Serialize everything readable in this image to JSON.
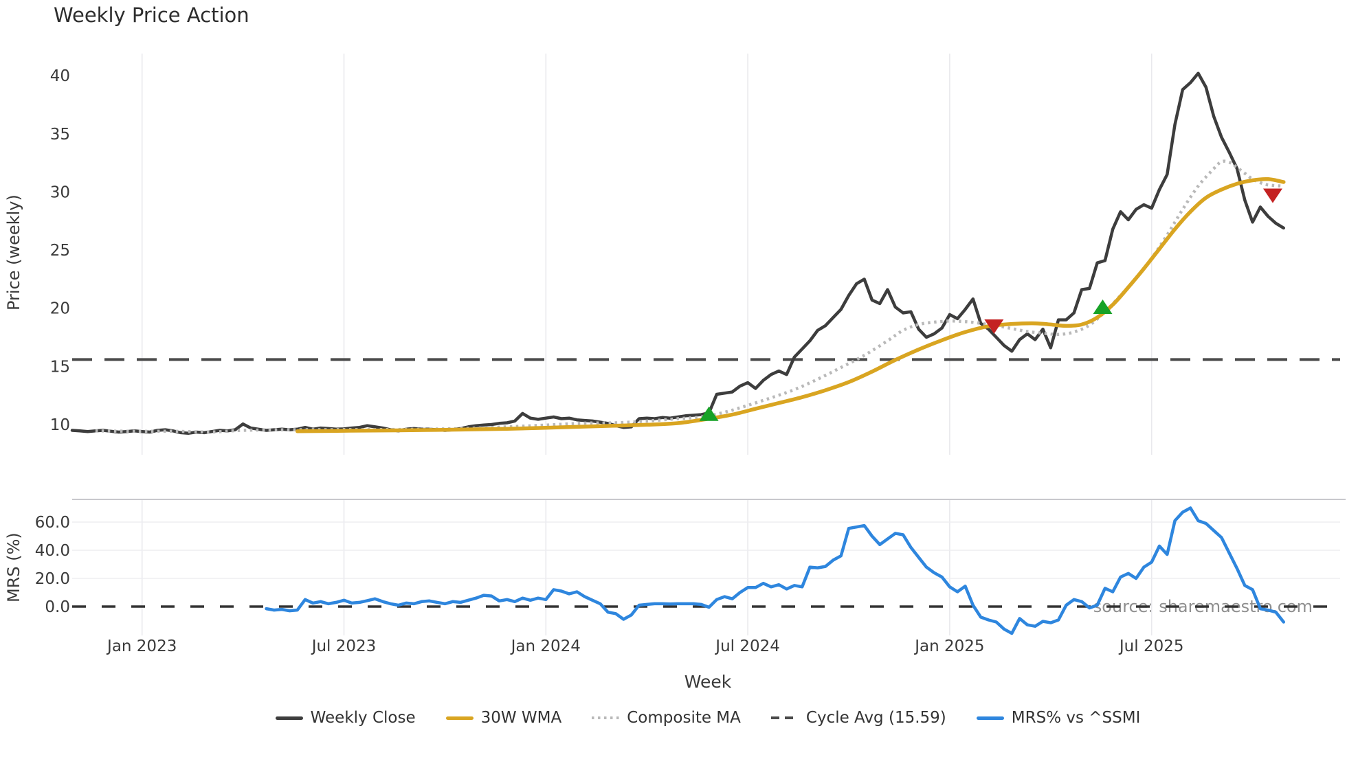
{
  "source_note": "source: sharemaestro.com",
  "chart_data": {
    "type": "line",
    "title": "Weekly Price Action",
    "x_axis": {
      "label": "Week",
      "tick_labels": [
        "Jan 2023",
        "Jul 2023",
        "Jan 2024",
        "Jul 2024",
        "Jan 2025",
        "Jul 2025"
      ],
      "tick_weeks": [
        9,
        35,
        61,
        87,
        113,
        139
      ]
    },
    "layout_hints": {
      "grid": "vertical-both-panels, horizontal-mrs-panel",
      "legend_position": "bottom-center",
      "price_ylim": [
        7.4,
        42.1
      ],
      "mrs_ylim": [
        -20.5,
        76
      ]
    },
    "panels": {
      "price": {
        "ylabel": "Price (weekly)",
        "ticks": [
          10,
          15,
          20,
          25,
          30,
          35,
          40
        ],
        "series": [
          {
            "id": "weekly_close",
            "name": "Weekly Close",
            "color": "#3d3d3d",
            "style": "solid",
            "start_week": 0,
            "values": [
              9.5,
              9.45,
              9.4,
              9.45,
              9.5,
              9.42,
              9.35,
              9.4,
              9.45,
              9.4,
              9.35,
              9.5,
              9.55,
              9.45,
              9.3,
              9.25,
              9.35,
              9.3,
              9.4,
              9.5,
              9.45,
              9.55,
              10.05,
              9.7,
              9.6,
              9.5,
              9.55,
              9.6,
              9.55,
              9.6,
              9.75,
              9.6,
              9.7,
              9.65,
              9.6,
              9.62,
              9.7,
              9.75,
              9.9,
              9.8,
              9.7,
              9.55,
              9.45,
              9.6,
              9.65,
              9.6,
              9.6,
              9.55,
              9.5,
              9.55,
              9.65,
              9.8,
              9.9,
              9.95,
              10.0,
              10.1,
              10.15,
              10.3,
              10.95,
              10.55,
              10.45,
              10.55,
              10.65,
              10.5,
              10.55,
              10.4,
              10.35,
              10.3,
              10.2,
              10.1,
              9.9,
              9.75,
              9.8,
              10.5,
              10.55,
              10.5,
              10.6,
              10.55,
              10.65,
              10.75,
              10.8,
              10.85,
              11.0,
              12.6,
              12.7,
              12.8,
              13.3,
              13.6,
              13.1,
              13.8,
              14.3,
              14.6,
              14.3,
              15.8,
              16.5,
              17.2,
              18.1,
              18.5,
              19.2,
              19.9,
              21.1,
              22.1,
              22.5,
              20.7,
              20.4,
              21.6,
              20.1,
              19.6,
              19.7,
              18.2,
              17.5,
              17.8,
              18.3,
              19.45,
              19.1,
              19.9,
              20.8,
              18.7,
              18.2,
              17.5,
              16.8,
              16.3,
              17.3,
              17.8,
              17.3,
              18.2,
              16.6,
              19.0,
              19.0,
              19.6,
              21.6,
              21.7,
              23.9,
              24.1,
              26.8,
              28.3,
              27.6,
              28.5,
              28.9,
              28.6,
              30.2,
              31.5,
              35.8,
              38.8,
              39.4,
              40.2,
              39.0,
              36.5,
              34.7,
              33.4,
              32.0,
              29.3,
              27.4,
              28.7,
              27.9,
              27.3,
              26.9
            ]
          },
          {
            "id": "wma30",
            "name": "30W WMA",
            "color": "#d9a521",
            "style": "solid",
            "anchors": [
              [
                29,
                9.42
              ],
              [
                35,
                9.46
              ],
              [
                42,
                9.5
              ],
              [
                50,
                9.56
              ],
              [
                56,
                9.63
              ],
              [
                61,
                9.72
              ],
              [
                66,
                9.82
              ],
              [
                70,
                9.9
              ],
              [
                74,
                9.98
              ],
              [
                78,
                10.12
              ],
              [
                82,
                10.5
              ],
              [
                85,
                10.85
              ],
              [
                88,
                11.35
              ],
              [
                91,
                11.85
              ],
              [
                94,
                12.35
              ],
              [
                97,
                12.95
              ],
              [
                100,
                13.65
              ],
              [
                103,
                14.55
              ],
              [
                106,
                15.55
              ],
              [
                109,
                16.45
              ],
              [
                112,
                17.25
              ],
              [
                115,
                17.95
              ],
              [
                118,
                18.45
              ],
              [
                121,
                18.65
              ],
              [
                124,
                18.7
              ],
              [
                126,
                18.6
              ],
              [
                128,
                18.48
              ],
              [
                130,
                18.6
              ],
              [
                132,
                19.2
              ],
              [
                134,
                20.3
              ],
              [
                136,
                21.8
              ],
              [
                138,
                23.4
              ],
              [
                140,
                25.1
              ],
              [
                142,
                26.8
              ],
              [
                144,
                28.3
              ],
              [
                146,
                29.5
              ],
              [
                148,
                30.2
              ],
              [
                150,
                30.7
              ],
              [
                152,
                31.0
              ],
              [
                154,
                31.1
              ],
              [
                156,
                30.85
              ]
            ]
          },
          {
            "id": "composite",
            "name": "Composite MA",
            "color": "#b9b9b9",
            "style": "dotted",
            "anchors": [
              [
                3,
                9.45
              ],
              [
                8,
                9.42
              ],
              [
                13,
                9.42
              ],
              [
                18,
                9.36
              ],
              [
                22,
                9.5
              ],
              [
                28,
                9.55
              ],
              [
                35,
                9.56
              ],
              [
                42,
                9.58
              ],
              [
                50,
                9.65
              ],
              [
                56,
                9.8
              ],
              [
                61,
                9.95
              ],
              [
                66,
                10.12
              ],
              [
                70,
                10.15
              ],
              [
                74,
                10.3
              ],
              [
                78,
                10.5
              ],
              [
                81,
                10.65
              ],
              [
                84,
                11.05
              ],
              [
                87,
                11.65
              ],
              [
                90,
                12.3
              ],
              [
                93,
                13.0
              ],
              [
                96,
                13.9
              ],
              [
                99,
                14.9
              ],
              [
                102,
                15.95
              ],
              [
                105,
                17.2
              ],
              [
                107,
                18.1
              ],
              [
                109,
                18.6
              ],
              [
                111,
                18.8
              ],
              [
                113,
                18.9
              ],
              [
                115,
                18.85
              ],
              [
                117,
                18.7
              ],
              [
                119,
                18.5
              ],
              [
                121,
                18.25
              ],
              [
                123,
                18.0
              ],
              [
                125,
                17.85
              ],
              [
                127,
                17.75
              ],
              [
                129,
                17.95
              ],
              [
                131,
                18.55
              ],
              [
                133,
                19.7
              ],
              [
                135,
                21.1
              ],
              [
                137,
                22.6
              ],
              [
                139,
                24.3
              ],
              [
                141,
                26.3
              ],
              [
                143,
                28.5
              ],
              [
                145,
                30.5
              ],
              [
                147,
                32.0
              ],
              [
                148,
                32.6
              ],
              [
                149,
                32.55
              ],
              [
                150,
                32.1
              ],
              [
                151,
                31.6
              ],
              [
                152,
                31.1
              ],
              [
                153,
                30.8
              ],
              [
                154,
                30.6
              ],
              [
                156,
                30.5
              ]
            ]
          },
          {
            "id": "cycle_avg",
            "name": "Cycle Avg (15.59)",
            "color": "#4a4a4a",
            "style": "dashed",
            "value": 15.59
          }
        ],
        "markers": {
          "buy": {
            "color": "#17a227",
            "shape": "triangle-up",
            "points": [
              {
                "week": 82,
                "price": 10.9
              },
              {
                "week": 132.7,
                "price": 20.1
              }
            ]
          },
          "sell": {
            "color": "#c42222",
            "shape": "triangle-down",
            "points": [
              {
                "week": 118.7,
                "price": 18.45
              },
              {
                "week": 154.6,
                "price": 29.7
              }
            ]
          }
        }
      },
      "mrs": {
        "ylabel": "MRS (%)",
        "ticks": [
          {
            "value": 0,
            "label": "0.0"
          },
          {
            "value": 20,
            "label": "20.0"
          },
          {
            "value": 40,
            "label": "40.0"
          },
          {
            "value": 60,
            "label": "60.0"
          }
        ],
        "zero_line": 0,
        "series": [
          {
            "id": "mrs",
            "name": "MRS% vs ^SSMI",
            "color": "#2e86de",
            "style": "solid",
            "start_week": 25,
            "values": [
              -1.5,
              -2.5,
              -2,
              -3,
              -2.5,
              5,
              2.5,
              3.5,
              2,
              3,
              4.5,
              2.5,
              3,
              4.2,
              5.5,
              3.5,
              2,
              1,
              2.5,
              2,
              3.5,
              4,
              3,
              2,
              3.5,
              3,
              4.5,
              6,
              8,
              7.5,
              4,
              5,
              3.5,
              6,
              4.5,
              6,
              5,
              12,
              11,
              9,
              10.5,
              7,
              4.5,
              2,
              -4,
              -5,
              -9,
              -6,
              1,
              1.5,
              2,
              2,
              1.8,
              2,
              2,
              2,
              1.5,
              -0.5,
              5,
              7,
              5.5,
              10,
              13.5,
              13.5,
              16.5,
              14,
              15.5,
              12.5,
              15,
              14,
              28,
              27.5,
              28.5,
              33,
              36,
              55.5,
              56.5,
              57.5,
              50,
              44,
              48,
              52,
              51,
              42,
              35,
              28,
              24,
              21,
              14,
              10.5,
              14.5,
              1,
              -7.5,
              -9.5,
              -11,
              -16,
              -19,
              -8.5,
              -13,
              -14,
              -10.5,
              -11.5,
              -9.5,
              1,
              5,
              3.5,
              -1,
              1,
              13,
              10.5,
              21,
              23.5,
              20,
              28,
              31.5,
              43,
              37,
              61,
              67,
              70,
              61,
              59,
              54,
              49,
              38,
              27,
              15,
              12,
              -1.5,
              -2.5,
              -4,
              -11
            ]
          }
        ]
      }
    },
    "source_note": "source: sharemaestro.com",
    "legend": {
      "items": [
        {
          "label": "Weekly Close",
          "color": "#3d3d3d",
          "line": "solid"
        },
        {
          "label": "30W WMA",
          "color": "#d9a521",
          "line": "solid"
        },
        {
          "label": "Composite MA",
          "color": "#b9b9b9",
          "line": "dotted"
        },
        {
          "label": "Cycle Avg (15.59)",
          "color": "#4a4a4a",
          "line": "dashed"
        },
        {
          "label": "MRS% vs ^SSMI",
          "color": "#2e86de",
          "line": "solid"
        }
      ]
    }
  }
}
